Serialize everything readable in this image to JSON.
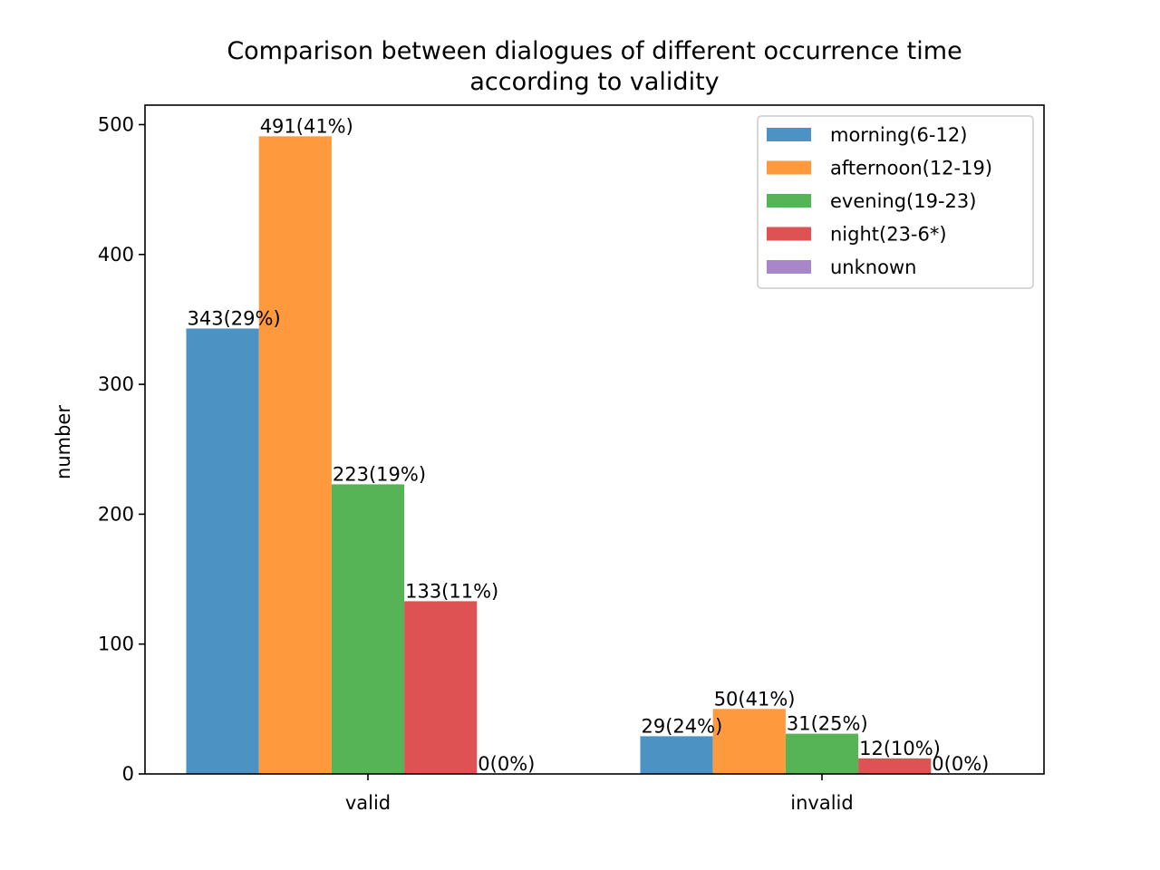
{
  "chart_data": {
    "type": "bar",
    "title_lines": [
      "Comparison between dialogues of different occurrence time",
      "according to validity"
    ],
    "xlabel": "",
    "ylabel": "number",
    "categories": [
      "valid",
      "invalid"
    ],
    "ylim": [
      0,
      515
    ],
    "yticks": [
      0,
      100,
      200,
      300,
      400,
      500
    ],
    "grid": false,
    "legend_position": "top-right",
    "series": [
      {
        "name": "morning(6-12)",
        "color": "#4c92c3",
        "values": [
          343,
          29
        ],
        "labels": [
          "343(29%)",
          "29(24%)"
        ]
      },
      {
        "name": "afternoon(12-19)",
        "color": "#ff993e",
        "values": [
          491,
          50
        ],
        "labels": [
          "491(41%)",
          "50(41%)"
        ]
      },
      {
        "name": "evening(19-23)",
        "color": "#56b356",
        "values": [
          223,
          31
        ],
        "labels": [
          "223(19%)",
          "31(25%)"
        ]
      },
      {
        "name": "night(23-6*)",
        "color": "#de5253",
        "values": [
          133,
          12
        ],
        "labels": [
          "133(11%)",
          "12(10%)"
        ]
      },
      {
        "name": "unknown",
        "color": "#a985ca",
        "values": [
          0,
          0
        ],
        "labels": [
          "0(0%)",
          "0(0%)"
        ]
      }
    ]
  }
}
